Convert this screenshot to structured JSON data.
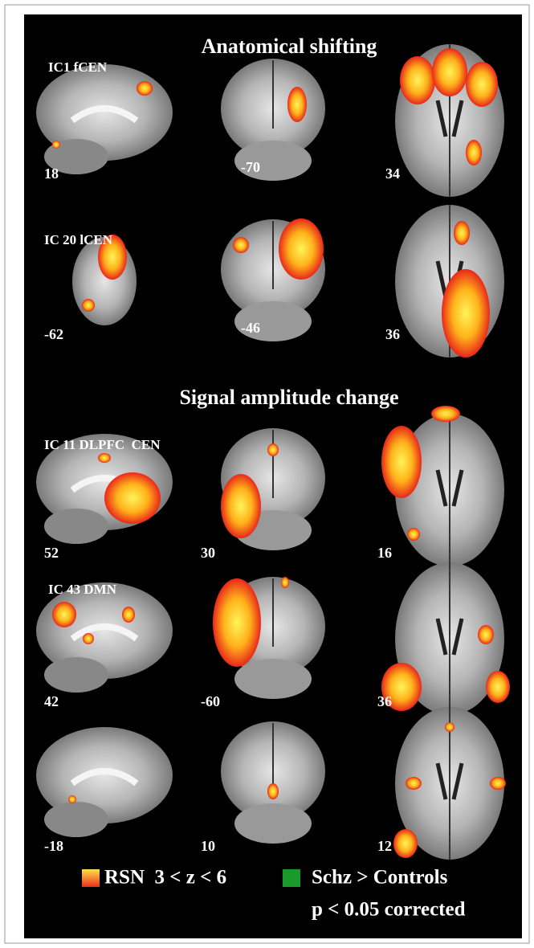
{
  "sections": [
    {
      "title": "Anatomical shifting",
      "rows": [
        {
          "label": "IC1 fCEN",
          "slices": [
            18,
            -70,
            34
          ]
        },
        {
          "label": "IC 20 lCEN",
          "slices": [
            -62,
            -46,
            36
          ]
        }
      ]
    },
    {
      "title": "Signal amplitude change",
      "rows": [
        {
          "label": "IC 11 DLPFC  CEN",
          "slices": [
            52,
            30,
            16
          ]
        },
        {
          "label": "IC 43 DMN",
          "slices": [
            42,
            -60,
            36
          ]
        },
        {
          "slices": [
            -18,
            10,
            12
          ]
        }
      ]
    }
  ],
  "legend": {
    "items": [
      {
        "lines": [
          "RSN  3 < z < 6"
        ]
      },
      {
        "lines": [
          "Schz > Controls",
          "p < 0.05 corrected"
        ]
      }
    ]
  }
}
